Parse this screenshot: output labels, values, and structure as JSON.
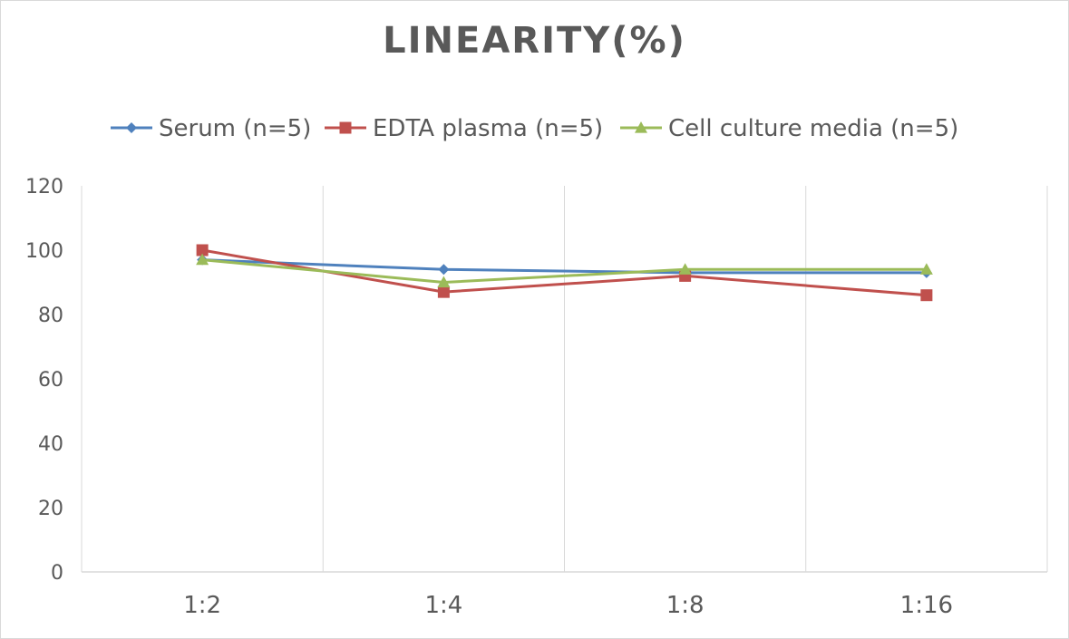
{
  "chart_data": {
    "type": "line",
    "title": "LINEARITY(%)",
    "xlabel": "",
    "ylabel": "",
    "categories": [
      "1:2",
      "1:4",
      "1:8",
      "1:16"
    ],
    "ylim": [
      0,
      120
    ],
    "yticks": [
      0,
      20,
      40,
      60,
      80,
      100,
      120
    ],
    "grid": "vertical",
    "legend_position": "top",
    "series": [
      {
        "name": "Serum (n=5)",
        "color": "#4f81bd",
        "marker": "diamond",
        "values": [
          97,
          94,
          93,
          93
        ]
      },
      {
        "name": "EDTA plasma (n=5)",
        "color": "#c0504d",
        "marker": "square",
        "values": [
          100,
          87,
          92,
          86
        ]
      },
      {
        "name": "Cell culture media (n=5)",
        "color": "#9bbb59",
        "marker": "triangle",
        "values": [
          97,
          90,
          94,
          94
        ]
      }
    ]
  }
}
